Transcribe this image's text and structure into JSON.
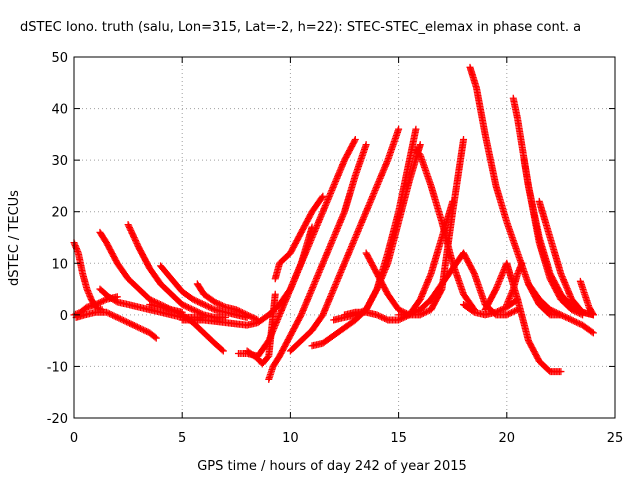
{
  "chart_data": {
    "type": "scatter",
    "title": "dSTEC Iono. truth (salu, Lon=315, Lat=-2, h=22): STEC-STEC_elemax in phase cont. a",
    "xlabel": "GPS time / hours of day 242 of year 2015",
    "ylabel": "dSTEC  / TECUs",
    "xlim": [
      0,
      25
    ],
    "ylim": [
      -20,
      50
    ],
    "xticks": [
      "0",
      "5",
      "10",
      "15",
      "20",
      "25"
    ],
    "yticks": [
      "-20",
      "-10",
      "0",
      "10",
      "20",
      "30",
      "40",
      "50"
    ],
    "grid": true,
    "marker": "+",
    "color": "#ff0000",
    "series": [
      {
        "x": [
          0.0,
          0.2,
          0.4,
          0.6,
          0.8,
          1.0,
          1.3
        ],
        "y": [
          14,
          12,
          8,
          5,
          3,
          1.5,
          1
        ]
      },
      {
        "x": [
          0.0,
          0.3,
          0.6,
          1.0,
          1.5,
          2.0
        ],
        "y": [
          0,
          0.5,
          1.5,
          2,
          3,
          3.5
        ]
      },
      {
        "x": [
          0.1,
          0.5,
          1.0,
          1.5,
          2.0,
          2.5,
          3.0,
          3.5,
          3.8
        ],
        "y": [
          -0.5,
          0,
          0.5,
          0.5,
          -0.5,
          -1.5,
          -2.5,
          -3.5,
          -4.5
        ]
      },
      {
        "x": [
          1.2,
          1.5,
          2.0,
          2.5,
          3.0,
          3.5,
          4.0,
          4.5,
          5.0
        ],
        "y": [
          16,
          14,
          10,
          7,
          5,
          3,
          2,
          1,
          0.5
        ]
      },
      {
        "x": [
          1.2,
          1.6,
          2.0,
          2.5,
          3.0,
          3.5,
          4.0,
          4.5,
          5.0,
          5.5,
          6.0
        ],
        "y": [
          5,
          3.5,
          2.5,
          2,
          1.5,
          1,
          0.5,
          0,
          -0.5,
          -0.5,
          -0.5
        ]
      },
      {
        "x": [
          2.5,
          3.0,
          3.5,
          4.0,
          4.5,
          5.0,
          5.5,
          6.0,
          6.5,
          7.0
        ],
        "y": [
          17.5,
          13,
          9,
          6,
          4,
          2,
          1,
          0,
          -0.5,
          -0.5
        ]
      },
      {
        "x": [
          4.0,
          4.5,
          5.0,
          5.5,
          6.0,
          6.5,
          7.0,
          7.5,
          8.0
        ],
        "y": [
          9.5,
          7,
          4.5,
          3,
          2,
          1,
          0.5,
          0,
          -0.5
        ]
      },
      {
        "x": [
          3.5,
          4.0,
          4.5,
          5.0,
          5.5,
          6.0,
          6.5,
          6.9
        ],
        "y": [
          2,
          1.5,
          1,
          0,
          -1.5,
          -3.5,
          -5.5,
          -7
        ]
      },
      {
        "x": [
          5.7,
          6.0,
          6.5,
          7.0,
          7.5,
          8.0,
          8.5
        ],
        "y": [
          6,
          4,
          2.5,
          1.5,
          1,
          0,
          -1
        ]
      },
      {
        "x": [
          5.0,
          6.0,
          7.0,
          8.0,
          8.5,
          9.0,
          9.5,
          10.0,
          10.5,
          11.0
        ],
        "y": [
          -1,
          -1,
          -1.5,
          -2,
          -1.5,
          0,
          2,
          5,
          10,
          17
        ]
      },
      {
        "x": [
          7.6,
          8.0,
          8.5,
          9.0,
          9.5,
          10.0,
          10.5,
          11.0,
          11.5,
          12.0,
          12.5,
          13.0
        ],
        "y": [
          -7.5,
          -7.5,
          -8,
          -5,
          0,
          5,
          10,
          15,
          20,
          25,
          30,
          34
        ]
      },
      {
        "x": [
          8.0,
          8.5,
          8.7,
          9.0,
          9.3
        ],
        "y": [
          -7,
          -8.5,
          -9.5,
          -8,
          4
        ]
      },
      {
        "x": [
          9.0,
          9.2,
          9.5,
          10.0,
          10.5,
          11.0,
          11.5,
          12.0,
          12.5,
          13.0,
          13.5
        ],
        "y": [
          -12.5,
          -10,
          -8,
          -4,
          0,
          5,
          10,
          15,
          20,
          27,
          33
        ]
      },
      {
        "x": [
          9.3,
          9.5,
          10.0,
          10.5,
          11.0,
          11.5
        ],
        "y": [
          7,
          10,
          12,
          16,
          20,
          23
        ]
      },
      {
        "x": [
          10.0,
          10.5,
          11.0,
          11.5,
          12.0,
          12.5,
          13.0,
          13.5,
          14.0,
          14.5,
          15.0
        ],
        "y": [
          -7,
          -5,
          -3,
          0,
          5,
          10,
          15,
          20,
          25,
          30,
          36
        ]
      },
      {
        "x": [
          11.0,
          11.5,
          12.0,
          12.5,
          13.0,
          13.5,
          14.0,
          14.5,
          15.0,
          15.5,
          16.0
        ],
        "y": [
          -6,
          -5.5,
          -4,
          -2.5,
          -1,
          1,
          5,
          10,
          18,
          26,
          33
        ]
      },
      {
        "x": [
          12.0,
          12.5,
          13.0,
          13.5,
          14.0,
          14.5,
          15.0,
          15.5,
          15.8
        ],
        "y": [
          -1,
          -0.5,
          0,
          1,
          5,
          12,
          20,
          30,
          36
        ]
      },
      {
        "x": [
          12.5,
          13.0,
          13.5,
          14.0,
          14.5,
          15.0,
          15.5,
          16.0,
          16.5,
          17.0,
          17.5
        ],
        "y": [
          0,
          0.5,
          0.5,
          0,
          -1,
          -1,
          0,
          3,
          8,
          15,
          22
        ]
      },
      {
        "x": [
          13.5,
          14.0,
          14.5,
          15.0,
          15.5,
          16.0,
          16.5,
          17.0,
          17.5,
          18.0
        ],
        "y": [
          12,
          8,
          4,
          1,
          0,
          0,
          1,
          5,
          20,
          34
        ]
      },
      {
        "x": [
          15.8,
          16.0,
          16.5,
          17.0,
          17.5,
          18.0,
          18.5
        ],
        "y": [
          32,
          31,
          25,
          18,
          10,
          4,
          1
        ]
      },
      {
        "x": [
          15.0,
          15.5,
          16.0,
          16.5,
          17.0,
          17.5,
          18.0,
          18.5,
          19.0,
          19.5,
          20.0,
          20.5
        ],
        "y": [
          0,
          0,
          1,
          3,
          6,
          9,
          12,
          8,
          2,
          0,
          0,
          1
        ]
      },
      {
        "x": [
          18.3,
          18.6,
          19.0,
          19.5,
          20.0,
          20.5,
          21.0,
          21.5,
          22.0,
          22.5
        ],
        "y": [
          48,
          44,
          35,
          25,
          18,
          12,
          6,
          2,
          0,
          0
        ]
      },
      {
        "x": [
          18.0,
          18.5,
          19.0,
          19.5,
          20.0,
          20.5
        ],
        "y": [
          2,
          0.5,
          0,
          0.5,
          1.5,
          3
        ]
      },
      {
        "x": [
          20.3,
          20.5,
          21.0,
          21.5,
          22.0,
          22.5,
          23.0,
          23.5
        ],
        "y": [
          42,
          38,
          25,
          14,
          7,
          3,
          1,
          0
        ]
      },
      {
        "x": [
          20.8,
          21.0,
          21.5,
          22.0,
          22.5,
          23.0,
          23.5,
          24.0
        ],
        "y": [
          30,
          25,
          15,
          8,
          4,
          1.5,
          0.5,
          0
        ]
      },
      {
        "x": [
          21.5,
          22.0,
          22.5,
          23.0,
          23.5,
          24.0
        ],
        "y": [
          22,
          15,
          8,
          3,
          0.5,
          0
        ]
      },
      {
        "x": [
          19.0,
          19.5,
          20.0,
          20.5,
          21.0,
          21.5,
          22.0,
          22.5
        ],
        "y": [
          1,
          5,
          10,
          3,
          -5,
          -9,
          -11,
          -11
        ]
      },
      {
        "x": [
          20.0,
          20.3,
          20.5,
          20.7
        ],
        "y": [
          2,
          5,
          8,
          10
        ]
      },
      {
        "x": [
          21.0,
          21.5,
          22.0,
          22.5,
          23.0,
          23.5,
          24.0
        ],
        "y": [
          6,
          3,
          1,
          0,
          -1,
          -2,
          -3.5
        ]
      },
      {
        "x": [
          23.4,
          23.6,
          23.8,
          24.0
        ],
        "y": [
          6.5,
          4,
          1.5,
          0
        ]
      }
    ]
  }
}
